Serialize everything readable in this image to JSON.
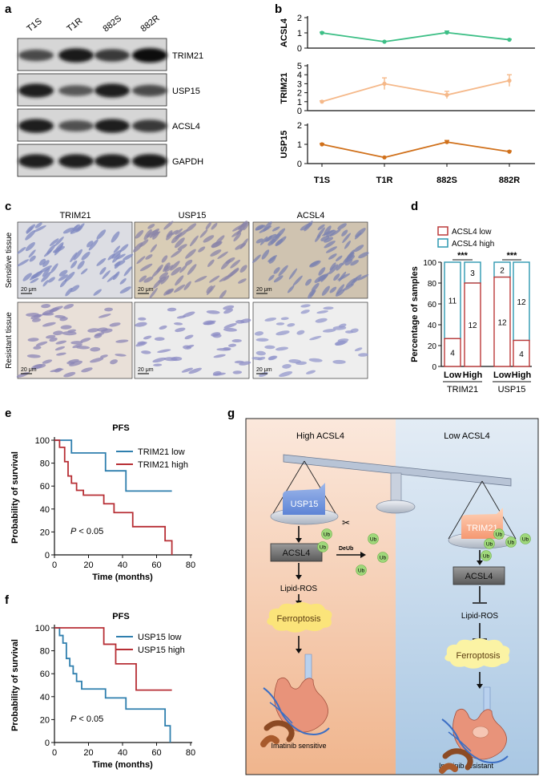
{
  "panel_labels": {
    "a": "a",
    "b": "b",
    "c": "c",
    "d": "d",
    "e": "e",
    "f": "f",
    "g": "g"
  },
  "colors": {
    "green": "#3dbf86",
    "peach": "#f5b889",
    "orange": "#d0701a",
    "red": "#b72f35",
    "blue": "#2f7fae",
    "low_bar": "#bb3a3a",
    "high_bar": "#2d98b0"
  },
  "panel_a": {
    "lanes": [
      "T1S",
      "T1R",
      "882S",
      "882R"
    ],
    "blots": [
      "TRIM21",
      "USP15",
      "ACSL4",
      "GAPDH"
    ]
  },
  "panel_c": {
    "columns": [
      "TRIM21",
      "USP15",
      "ACSL4"
    ],
    "rows": [
      "Sensitive tissue",
      "Resistant tissue"
    ],
    "scale_label": "20 μm"
  },
  "panel_g": {
    "left_title": "High ACSL4",
    "right_title": "Low ACSL4",
    "usp15": "USP15",
    "trim21": "TRIM21",
    "acsl4": "ACSL4",
    "deub": "DeUb",
    "ub": "Ub",
    "lipid_ros": "Lipid-ROS",
    "ferroptosis": "Ferroptosis",
    "left_outcome": "Imatinib sensitive",
    "right_outcome": "Imatinib resistant"
  },
  "chart_data": [
    {
      "id": "b",
      "type": "line",
      "categories": [
        "T1S",
        "T1R",
        "882S",
        "882R"
      ],
      "subplots": [
        {
          "ylabel": "ACSL4",
          "ylim": [
            0,
            2
          ],
          "yticks": [
            0,
            1,
            2
          ],
          "color": "#3dbf86",
          "values": [
            1.0,
            0.42,
            1.02,
            0.55
          ],
          "errors": [
            0.05,
            0.03,
            0.1,
            0.04
          ]
        },
        {
          "ylabel": "TRIM21",
          "ylim": [
            0,
            5
          ],
          "yticks": [
            0,
            1,
            2,
            3,
            4,
            5
          ],
          "color": "#f5b889",
          "values": [
            1.0,
            3.0,
            1.75,
            3.35
          ],
          "errors": [
            0.1,
            0.65,
            0.4,
            0.65
          ]
        },
        {
          "ylabel": "USP15",
          "ylim": [
            0,
            2
          ],
          "yticks": [
            0,
            1,
            2
          ],
          "color": "#d0701a",
          "values": [
            1.0,
            0.32,
            1.12,
            0.62
          ],
          "errors": [
            0.04,
            0.03,
            0.08,
            0.04
          ]
        }
      ]
    },
    {
      "id": "d",
      "type": "bar",
      "stacked": true,
      "ylabel": "Percentage of samples",
      "ylim": [
        0,
        100
      ],
      "yticks": [
        0,
        20,
        40,
        60,
        80,
        100
      ],
      "legend": [
        "ACSL4 low",
        "ACSL4 high"
      ],
      "categories": [
        "Low",
        "High",
        "Low",
        "High"
      ],
      "groups": [
        "TRIM21",
        "USP15"
      ],
      "significance": [
        "***",
        "***"
      ],
      "low_counts": [
        4,
        12,
        12,
        4
      ],
      "high_counts": [
        11,
        3,
        2,
        12
      ],
      "low_percent": [
        26.7,
        80.0,
        85.7,
        25.0
      ]
    },
    {
      "id": "e",
      "type": "line",
      "title": "PFS",
      "xlabel": "Time (months)",
      "ylabel": "Probability of survival",
      "xlim": [
        0,
        80
      ],
      "ylim": [
        0,
        100
      ],
      "xticks": [
        0,
        20,
        40,
        60,
        80
      ],
      "yticks": [
        0,
        20,
        40,
        60,
        80,
        100
      ],
      "annotation": "P < 0.05",
      "series": [
        {
          "name": "TRIM21 low",
          "color": "#2f7fae",
          "steps": [
            [
              0,
              100
            ],
            [
              10,
              100
            ],
            [
              10,
              88.9
            ],
            [
              30,
              88.9
            ],
            [
              30,
              73.3
            ],
            [
              42,
              73.3
            ],
            [
              42,
              55.7
            ],
            [
              69,
              55.7
            ]
          ]
        },
        {
          "name": "TRIM21 high",
          "color": "#b72f35",
          "steps": [
            [
              0,
              100
            ],
            [
              3,
              100
            ],
            [
              3,
              93.8
            ],
            [
              6,
              93.8
            ],
            [
              6,
              81.3
            ],
            [
              8,
              81.3
            ],
            [
              8,
              68.8
            ],
            [
              10,
              68.8
            ],
            [
              10,
              62.5
            ],
            [
              13,
              62.5
            ],
            [
              13,
              56.3
            ],
            [
              17,
              56.3
            ],
            [
              17,
              52.1
            ],
            [
              29,
              52.1
            ],
            [
              29,
              44.6
            ],
            [
              35,
              44.6
            ],
            [
              35,
              36.9
            ],
            [
              46,
              36.9
            ],
            [
              46,
              24.6
            ],
            [
              65,
              24.6
            ],
            [
              65,
              12.3
            ],
            [
              69,
              12.3
            ],
            [
              69,
              0
            ]
          ]
        }
      ]
    },
    {
      "id": "f",
      "type": "line",
      "title": "PFS",
      "xlabel": "Time (months)",
      "ylabel": "Probability of survival",
      "xlim": [
        0,
        80
      ],
      "ylim": [
        0,
        100
      ],
      "xticks": [
        0,
        20,
        40,
        60,
        80
      ],
      "yticks": [
        0,
        20,
        40,
        60,
        80,
        100
      ],
      "annotation": "P < 0.05",
      "series": [
        {
          "name": "USP15 low",
          "color": "#2f7fae",
          "steps": [
            [
              0,
              100
            ],
            [
              3,
              100
            ],
            [
              3,
              93.3
            ],
            [
              5,
              93.3
            ],
            [
              5,
              86.7
            ],
            [
              7,
              86.7
            ],
            [
              7,
              73.3
            ],
            [
              9,
              73.3
            ],
            [
              9,
              66.7
            ],
            [
              11,
              66.7
            ],
            [
              11,
              60
            ],
            [
              13,
              60
            ],
            [
              13,
              53.3
            ],
            [
              16,
              53.3
            ],
            [
              16,
              46.7
            ],
            [
              30,
              46.7
            ],
            [
              30,
              38.9
            ],
            [
              42,
              38.9
            ],
            [
              42,
              29.2
            ],
            [
              65,
              29.2
            ],
            [
              65,
              14.6
            ],
            [
              68,
              14.6
            ],
            [
              68,
              0
            ]
          ]
        },
        {
          "name": "USP15 high",
          "color": "#b72f35",
          "steps": [
            [
              0,
              100
            ],
            [
              29,
              100
            ],
            [
              29,
              85.7
            ],
            [
              36,
              85.7
            ],
            [
              36,
              68.6
            ],
            [
              48,
              68.6
            ],
            [
              48,
              45.7
            ],
            [
              69,
              45.7
            ]
          ]
        }
      ]
    }
  ]
}
